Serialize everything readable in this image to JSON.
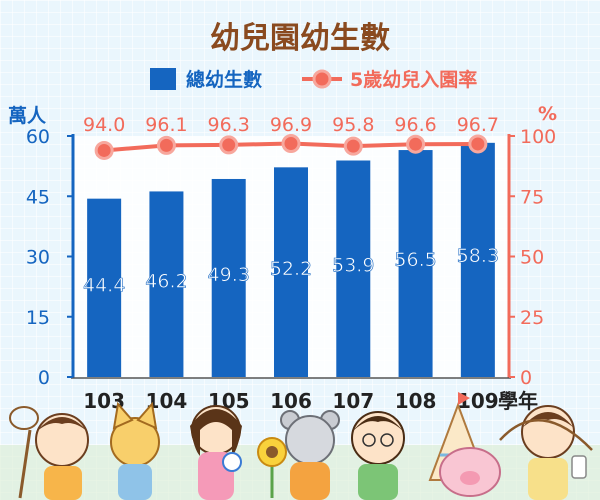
{
  "chart_data": {
    "type": "bar",
    "title": "幼兒園幼生數",
    "categories": [
      "103",
      "104",
      "105",
      "106",
      "107",
      "108",
      "109"
    ],
    "xlabel": "學年",
    "left_axis": {
      "unit": "萬人",
      "ylim": [
        0,
        60
      ],
      "ticks": [
        0,
        15,
        30,
        45,
        60
      ]
    },
    "right_axis": {
      "unit": "%",
      "ylim": [
        0,
        100
      ],
      "ticks": [
        0,
        25,
        50,
        75,
        100
      ]
    },
    "series": [
      {
        "name": "總幼生數",
        "type": "bar",
        "axis": "left",
        "color": "#1565c0",
        "values": [
          44.4,
          46.2,
          49.3,
          52.2,
          53.9,
          56.5,
          58.3
        ]
      },
      {
        "name": "5歲幼兒入園率",
        "type": "line",
        "axis": "right",
        "color": "#f26b5b",
        "values": [
          94.0,
          96.1,
          96.3,
          96.9,
          95.8,
          96.6,
          96.7
        ]
      }
    ],
    "legend": "top-center",
    "grid": false
  },
  "labels": {
    "bar_values": [
      "44.4",
      "46.2",
      "49.3",
      "52.2",
      "53.9",
      "56.5",
      "58.3"
    ],
    "line_values": [
      "94.0",
      "96.1",
      "96.3",
      "96.9",
      "95.8",
      "96.6",
      "96.7"
    ],
    "left_ticks": [
      "0",
      "15",
      "30",
      "45",
      "60"
    ],
    "right_ticks": [
      "0",
      "25",
      "50",
      "75",
      "100"
    ]
  },
  "decoration": {
    "icon": "cartoon-children-illustration"
  }
}
